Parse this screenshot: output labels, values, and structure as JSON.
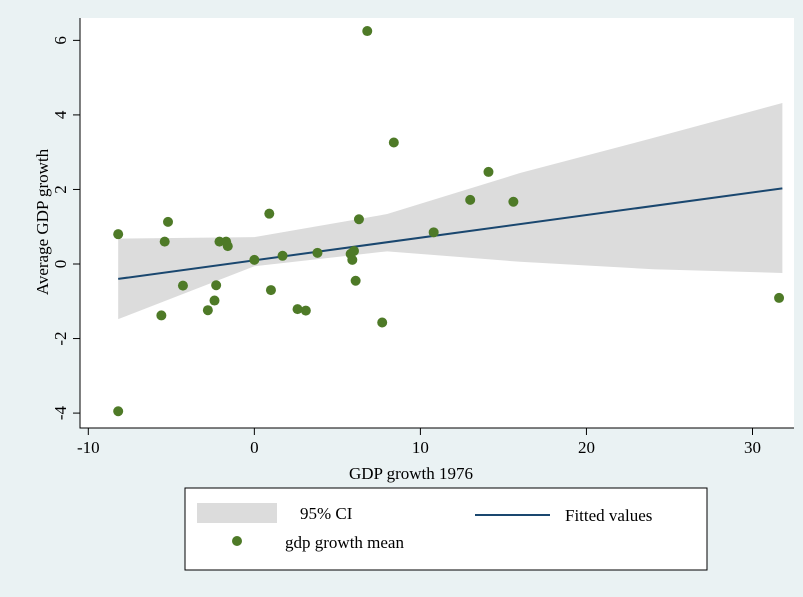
{
  "chart_data": {
    "type": "scatter",
    "xlabel": "GDP growth 1976",
    "ylabel": "Average GDP growth",
    "xlim": [
      -10.5,
      32.5
    ],
    "ylim": [
      -4.4,
      6.6
    ],
    "xticks": [
      -10,
      0,
      10,
      20,
      30
    ],
    "yticks": [
      -4,
      -2,
      0,
      2,
      4,
      6
    ],
    "xtick_labels": [
      "-10",
      "0",
      "10",
      "20",
      "30"
    ],
    "ytick_labels": [
      "-4",
      "-2",
      "0",
      "2",
      "4",
      "6"
    ],
    "grid": false,
    "legend_position": "bottom",
    "colors": {
      "background": "#eaf2f3",
      "plot_background": "#ffffff",
      "ci_band": "#dcdcdc",
      "fitted_line": "#1a476f",
      "markers": "#4e7a27"
    },
    "legend": [
      {
        "key": "ci",
        "label": "95% CI",
        "symbol": "band"
      },
      {
        "key": "fit",
        "label": "Fitted values",
        "symbol": "line"
      },
      {
        "key": "points",
        "label": "gdp growth mean",
        "symbol": "marker"
      }
    ],
    "fitted_line": {
      "x": [
        -8.2,
        31.8
      ],
      "y": [
        -0.4,
        2.03
      ]
    },
    "ci_band": {
      "x": [
        -8.2,
        0,
        8,
        16,
        24,
        31.8
      ],
      "lower": [
        -1.48,
        -0.06,
        0.34,
        0.06,
        -0.14,
        -0.24
      ],
      "upper": [
        0.68,
        0.72,
        1.34,
        2.44,
        3.38,
        4.32
      ]
    },
    "series": [
      {
        "name": "gdp growth mean",
        "x": [
          -8.2,
          -8.2,
          -5.6,
          -5.4,
          -5.2,
          -4.3,
          -2.8,
          -2.4,
          -2.3,
          -2.1,
          -1.7,
          -1.6,
          0.0,
          0.9,
          1.0,
          1.7,
          2.6,
          3.1,
          3.8,
          5.8,
          5.9,
          6.0,
          6.1,
          6.3,
          6.8,
          7.7,
          8.4,
          10.8,
          13.0,
          14.1,
          15.6,
          31.6
        ],
        "y": [
          -3.95,
          0.8,
          -1.38,
          0.6,
          1.13,
          -0.58,
          -1.24,
          -0.98,
          -0.57,
          0.6,
          0.6,
          0.48,
          0.11,
          1.35,
          -0.7,
          0.22,
          -1.21,
          -1.25,
          0.3,
          0.27,
          0.11,
          0.35,
          -0.45,
          1.2,
          6.25,
          -1.57,
          3.26,
          0.85,
          1.72,
          2.47,
          1.67,
          -0.91
        ]
      }
    ]
  }
}
